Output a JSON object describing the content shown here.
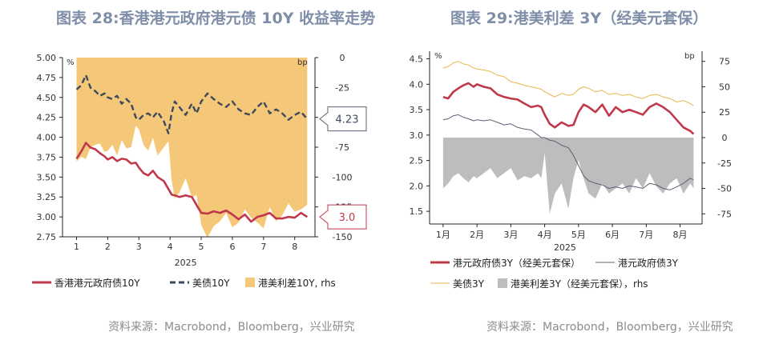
{
  "titles": {
    "left": "图表 28:香港港元政府港元债 10Y 收益率走势",
    "right": "图表 29:港美利差 3Y（经美元套保）"
  },
  "sources": {
    "left": "资料来源：Macrobond，Bloomberg，兴业研究",
    "right": "资料来源：Macrobond，Bloomberg，兴业研究"
  },
  "colors": {
    "hk": "#c0394b",
    "us": "#3d4a5c",
    "spread_left": "#f5c778",
    "us3y": "#e8b64d",
    "hk_line_thin": "#5a6275",
    "spread_right": "#bdbdbd",
    "title": "#7f8ea8"
  },
  "chart_data": [
    {
      "type": "line",
      "title": "图表 28:香港港元政府港元债 10Y 收益率走势",
      "ylabel_left": "%",
      "ylabel_right": "bp",
      "x_year_label": "2025",
      "x_ticks": [
        "1",
        "2",
        "3",
        "4",
        "5",
        "6",
        "7",
        "8"
      ],
      "ylim": [
        2.75,
        5.0
      ],
      "y2lim": [
        -150,
        0
      ],
      "y_ticks": [
        "5.00",
        "4.75",
        "4.50",
        "4.25",
        "4.00",
        "3.75",
        "3.50",
        "3.25",
        "3.00",
        "2.75"
      ],
      "y2_ticks": [
        "0",
        "-25",
        "-50",
        "-75",
        "-100",
        "-125",
        "-150"
      ],
      "legend": [
        "香港港元政府债10Y",
        "美债10Y",
        "港美利差10Y, rhs"
      ],
      "callouts": [
        "4.23",
        "3.0"
      ],
      "series": [
        {
          "name": "香港港元政府债10Y",
          "x": [
            1,
            1.15,
            1.3,
            1.45,
            1.6,
            1.75,
            1.9,
            2.0,
            2.15,
            2.3,
            2.45,
            2.6,
            2.75,
            2.9,
            3.0,
            3.15,
            3.3,
            3.45,
            3.6,
            3.8,
            3.95,
            4.05,
            4.15,
            4.3,
            4.5,
            4.7,
            4.85,
            5.0,
            5.2,
            5.4,
            5.6,
            5.8,
            6.0,
            6.2,
            6.4,
            6.6,
            6.8,
            7.0,
            7.2,
            7.4,
            7.6,
            7.8,
            8.0,
            8.2,
            8.4
          ],
          "values": [
            3.73,
            3.82,
            3.93,
            3.87,
            3.85,
            3.8,
            3.76,
            3.72,
            3.75,
            3.7,
            3.73,
            3.72,
            3.67,
            3.68,
            3.62,
            3.55,
            3.52,
            3.58,
            3.5,
            3.45,
            3.35,
            3.28,
            3.27,
            3.25,
            3.27,
            3.25,
            3.15,
            3.05,
            3.04,
            3.07,
            3.05,
            3.08,
            3.03,
            2.97,
            3.03,
            2.94,
            3.0,
            3.02,
            3.05,
            2.98,
            2.98,
            3.0,
            2.99,
            3.05,
            3.0
          ]
        },
        {
          "name": "美债10Y",
          "x": [
            1,
            1.15,
            1.3,
            1.45,
            1.6,
            1.75,
            1.9,
            2.0,
            2.15,
            2.3,
            2.45,
            2.6,
            2.75,
            2.9,
            3.0,
            3.15,
            3.3,
            3.45,
            3.6,
            3.8,
            3.95,
            4.05,
            4.15,
            4.3,
            4.5,
            4.7,
            4.85,
            5.0,
            5.2,
            5.4,
            5.6,
            5.8,
            6.0,
            6.2,
            6.4,
            6.6,
            6.8,
            7.0,
            7.2,
            7.4,
            7.6,
            7.8,
            8.0,
            8.2,
            8.4
          ],
          "values": [
            4.6,
            4.65,
            4.78,
            4.62,
            4.58,
            4.52,
            4.55,
            4.5,
            4.48,
            4.52,
            4.42,
            4.48,
            4.42,
            4.25,
            4.22,
            4.28,
            4.3,
            4.25,
            4.32,
            4.2,
            4.05,
            4.3,
            4.45,
            4.38,
            4.28,
            4.42,
            4.3,
            4.45,
            4.55,
            4.48,
            4.42,
            4.38,
            4.45,
            4.35,
            4.3,
            4.28,
            4.38,
            4.45,
            4.3,
            4.35,
            4.3,
            4.22,
            4.28,
            4.32,
            4.23
          ]
        },
        {
          "name": "港美利差10Y, rhs",
          "x": [
            1,
            1.15,
            1.3,
            1.45,
            1.6,
            1.75,
            1.9,
            2.0,
            2.15,
            2.3,
            2.45,
            2.6,
            2.75,
            2.9,
            3.0,
            3.15,
            3.3,
            3.45,
            3.6,
            3.8,
            3.95,
            4.05,
            4.15,
            4.3,
            4.5,
            4.7,
            4.85,
            5.0,
            5.2,
            5.4,
            5.6,
            5.8,
            6.0,
            6.2,
            6.4,
            6.6,
            6.8,
            7.0,
            7.2,
            7.4,
            7.6,
            7.8,
            8.0,
            8.2,
            8.4
          ],
          "values": [
            -87,
            -83,
            -85,
            -75,
            -73,
            -72,
            -79,
            -78,
            -73,
            -82,
            -69,
            -76,
            -75,
            -57,
            -60,
            -73,
            -78,
            -67,
            -82,
            -75,
            -70,
            -102,
            -118,
            -113,
            -101,
            -117,
            -115,
            -140,
            -151,
            -141,
            -137,
            -130,
            -142,
            -138,
            -127,
            -134,
            -138,
            -143,
            -125,
            -137,
            -132,
            -122,
            -129,
            -127,
            -123
          ]
        }
      ]
    },
    {
      "type": "line",
      "title": "图表 29:港美利差 3Y（经美元套保）",
      "ylabel_left": "%",
      "ylabel_right": "bp",
      "x_year_label": "2025",
      "x_ticks": [
        "1月",
        "2月",
        "3月",
        "4月",
        "5月",
        "6月",
        "7月",
        "8月"
      ],
      "ylim": [
        1.25,
        4.65
      ],
      "y2lim": [
        -85,
        85
      ],
      "y_ticks": [
        "4.5",
        "4.0",
        "3.5",
        "3.0",
        "2.5",
        "2.0",
        "1.5"
      ],
      "y2_ticks": [
        "75",
        "50",
        "25",
        "0",
        "-25",
        "-50",
        "-75"
      ],
      "legend": [
        "港元政府债3Y（经美元套保）",
        "港元政府债3Y",
        "美债3Y",
        "港美利差3Y（经美元套保），rhs"
      ],
      "series": [
        {
          "name": "港元政府债3Y（经美元套保）",
          "x": [
            1,
            1.15,
            1.3,
            1.45,
            1.6,
            1.75,
            1.9,
            2.0,
            2.2,
            2.4,
            2.6,
            2.8,
            3.0,
            3.2,
            3.4,
            3.6,
            3.8,
            3.9,
            4.0,
            4.15,
            4.3,
            4.5,
            4.7,
            4.85,
            5.0,
            5.15,
            5.3,
            5.5,
            5.7,
            5.9,
            6.1,
            6.3,
            6.5,
            6.7,
            6.9,
            7.1,
            7.3,
            7.5,
            7.7,
            7.9,
            8.1,
            8.3,
            8.4
          ],
          "values": [
            3.75,
            3.72,
            3.85,
            3.92,
            3.98,
            4.02,
            3.95,
            4.0,
            3.95,
            3.92,
            3.8,
            3.75,
            3.72,
            3.7,
            3.62,
            3.55,
            3.58,
            3.55,
            3.4,
            3.22,
            3.15,
            3.25,
            3.18,
            3.2,
            3.45,
            3.6,
            3.55,
            3.45,
            3.6,
            3.38,
            3.55,
            3.45,
            3.5,
            3.45,
            3.4,
            3.55,
            3.62,
            3.55,
            3.45,
            3.3,
            3.15,
            3.08,
            3.02
          ]
        },
        {
          "name": "港元政府债3Y",
          "x": [
            1,
            1.15,
            1.3,
            1.45,
            1.6,
            1.75,
            1.9,
            2.0,
            2.2,
            2.4,
            2.6,
            2.8,
            3.0,
            3.2,
            3.4,
            3.6,
            3.8,
            3.9,
            4.0,
            4.15,
            4.3,
            4.5,
            4.7,
            4.85,
            5.0,
            5.15,
            5.3,
            5.5,
            5.7,
            5.9,
            6.1,
            6.3,
            6.5,
            6.7,
            6.9,
            7.1,
            7.3,
            7.5,
            7.7,
            7.9,
            8.1,
            8.3,
            8.4
          ],
          "values": [
            3.3,
            3.32,
            3.38,
            3.4,
            3.35,
            3.32,
            3.28,
            3.3,
            3.28,
            3.3,
            3.25,
            3.2,
            3.22,
            3.15,
            3.12,
            3.1,
            3.0,
            2.95,
            2.95,
            2.9,
            2.88,
            2.8,
            2.75,
            2.6,
            2.4,
            2.2,
            2.1,
            2.05,
            2.02,
            1.95,
            1.98,
            1.95,
            2.0,
            1.98,
            1.95,
            2.05,
            2.02,
            1.95,
            1.92,
            1.98,
            2.05,
            2.15,
            2.12
          ]
        },
        {
          "name": "美债3Y",
          "x": [
            1,
            1.15,
            1.3,
            1.45,
            1.6,
            1.75,
            1.9,
            2.0,
            2.2,
            2.4,
            2.6,
            2.8,
            3.0,
            3.2,
            3.4,
            3.6,
            3.8,
            3.9,
            4.0,
            4.15,
            4.3,
            4.5,
            4.7,
            4.85,
            5.0,
            5.15,
            5.3,
            5.5,
            5.7,
            5.9,
            6.1,
            6.3,
            6.5,
            6.7,
            6.9,
            7.1,
            7.3,
            7.5,
            7.7,
            7.9,
            8.1,
            8.3,
            8.4
          ],
          "values": [
            4.32,
            4.35,
            4.42,
            4.45,
            4.4,
            4.38,
            4.32,
            4.3,
            4.28,
            4.25,
            4.18,
            4.15,
            4.05,
            4.02,
            3.98,
            3.95,
            3.92,
            3.9,
            3.85,
            3.8,
            3.75,
            3.82,
            3.78,
            3.8,
            3.9,
            3.95,
            3.92,
            3.85,
            3.88,
            3.8,
            3.82,
            3.78,
            3.8,
            3.75,
            3.72,
            3.78,
            3.8,
            3.75,
            3.72,
            3.65,
            3.68,
            3.62,
            3.58
          ]
        },
        {
          "name": "港美利差3Y（经美元套保），rhs",
          "x": [
            1,
            1.15,
            1.3,
            1.45,
            1.6,
            1.75,
            1.9,
            2.0,
            2.2,
            2.4,
            2.6,
            2.8,
            3.0,
            3.2,
            3.4,
            3.6,
            3.8,
            3.9,
            4.0,
            4.15,
            4.3,
            4.5,
            4.7,
            4.85,
            5.0,
            5.15,
            5.3,
            5.5,
            5.7,
            5.9,
            6.1,
            6.3,
            6.5,
            6.7,
            6.9,
            7.1,
            7.3,
            7.5,
            7.7,
            7.9,
            8.1,
            8.3,
            8.4
          ],
          "values": [
            -50,
            -45,
            -38,
            -35,
            -40,
            -44,
            -38,
            -40,
            -35,
            -30,
            -40,
            -35,
            -30,
            -42,
            -38,
            -40,
            -35,
            -40,
            -15,
            -75,
            -55,
            -45,
            -70,
            -40,
            -22,
            -40,
            -55,
            -60,
            -45,
            -55,
            -50,
            -45,
            -55,
            -40,
            -50,
            -35,
            -48,
            -55,
            -45,
            -40,
            -55,
            -45,
            -50
          ]
        }
      ]
    }
  ]
}
